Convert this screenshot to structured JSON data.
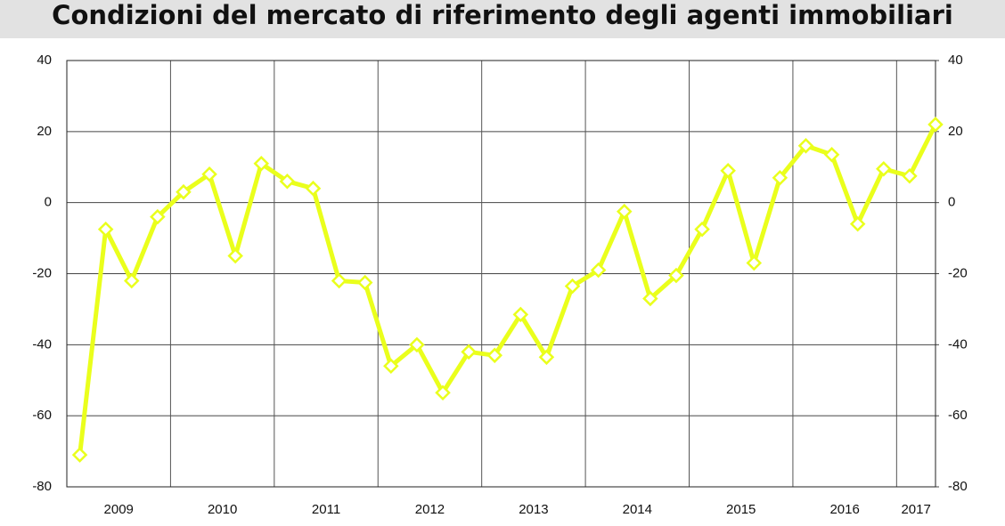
{
  "chart_data": {
    "type": "line",
    "title": "Condizioni del mercato di riferimento degli agenti immobiliari",
    "categories": [
      "2009",
      null,
      null,
      null,
      "2010",
      null,
      null,
      null,
      "2011",
      null,
      null,
      null,
      "2012",
      null,
      null,
      null,
      "2013",
      null,
      null,
      null,
      "2014",
      null,
      null,
      null,
      "2015",
      null,
      null,
      null,
      "2016",
      null,
      null,
      null,
      "2017",
      null
    ],
    "series": [
      {
        "color": "#eaff1c",
        "values": [
          -71,
          -7.5,
          -22,
          -4,
          3,
          8,
          -15,
          11,
          6,
          4,
          -22,
          -22.5,
          -46,
          -40,
          -53.5,
          -42,
          -43,
          -31.5,
          -43.5,
          -23.5,
          -19,
          -2.5,
          -27,
          -20.5,
          -7.5,
          9,
          -17,
          7,
          16,
          13.5,
          -6,
          9.5,
          7.5,
          22
        ]
      }
    ],
    "ylim": [
      -80,
      40
    ],
    "yticks": [
      -80,
      -60,
      -40,
      -20,
      0,
      20,
      40
    ],
    "y2lim": [
      -80,
      40
    ],
    "y2ticks": [
      -80,
      -60,
      -40,
      -20,
      0,
      20,
      40
    ],
    "grid": true
  }
}
